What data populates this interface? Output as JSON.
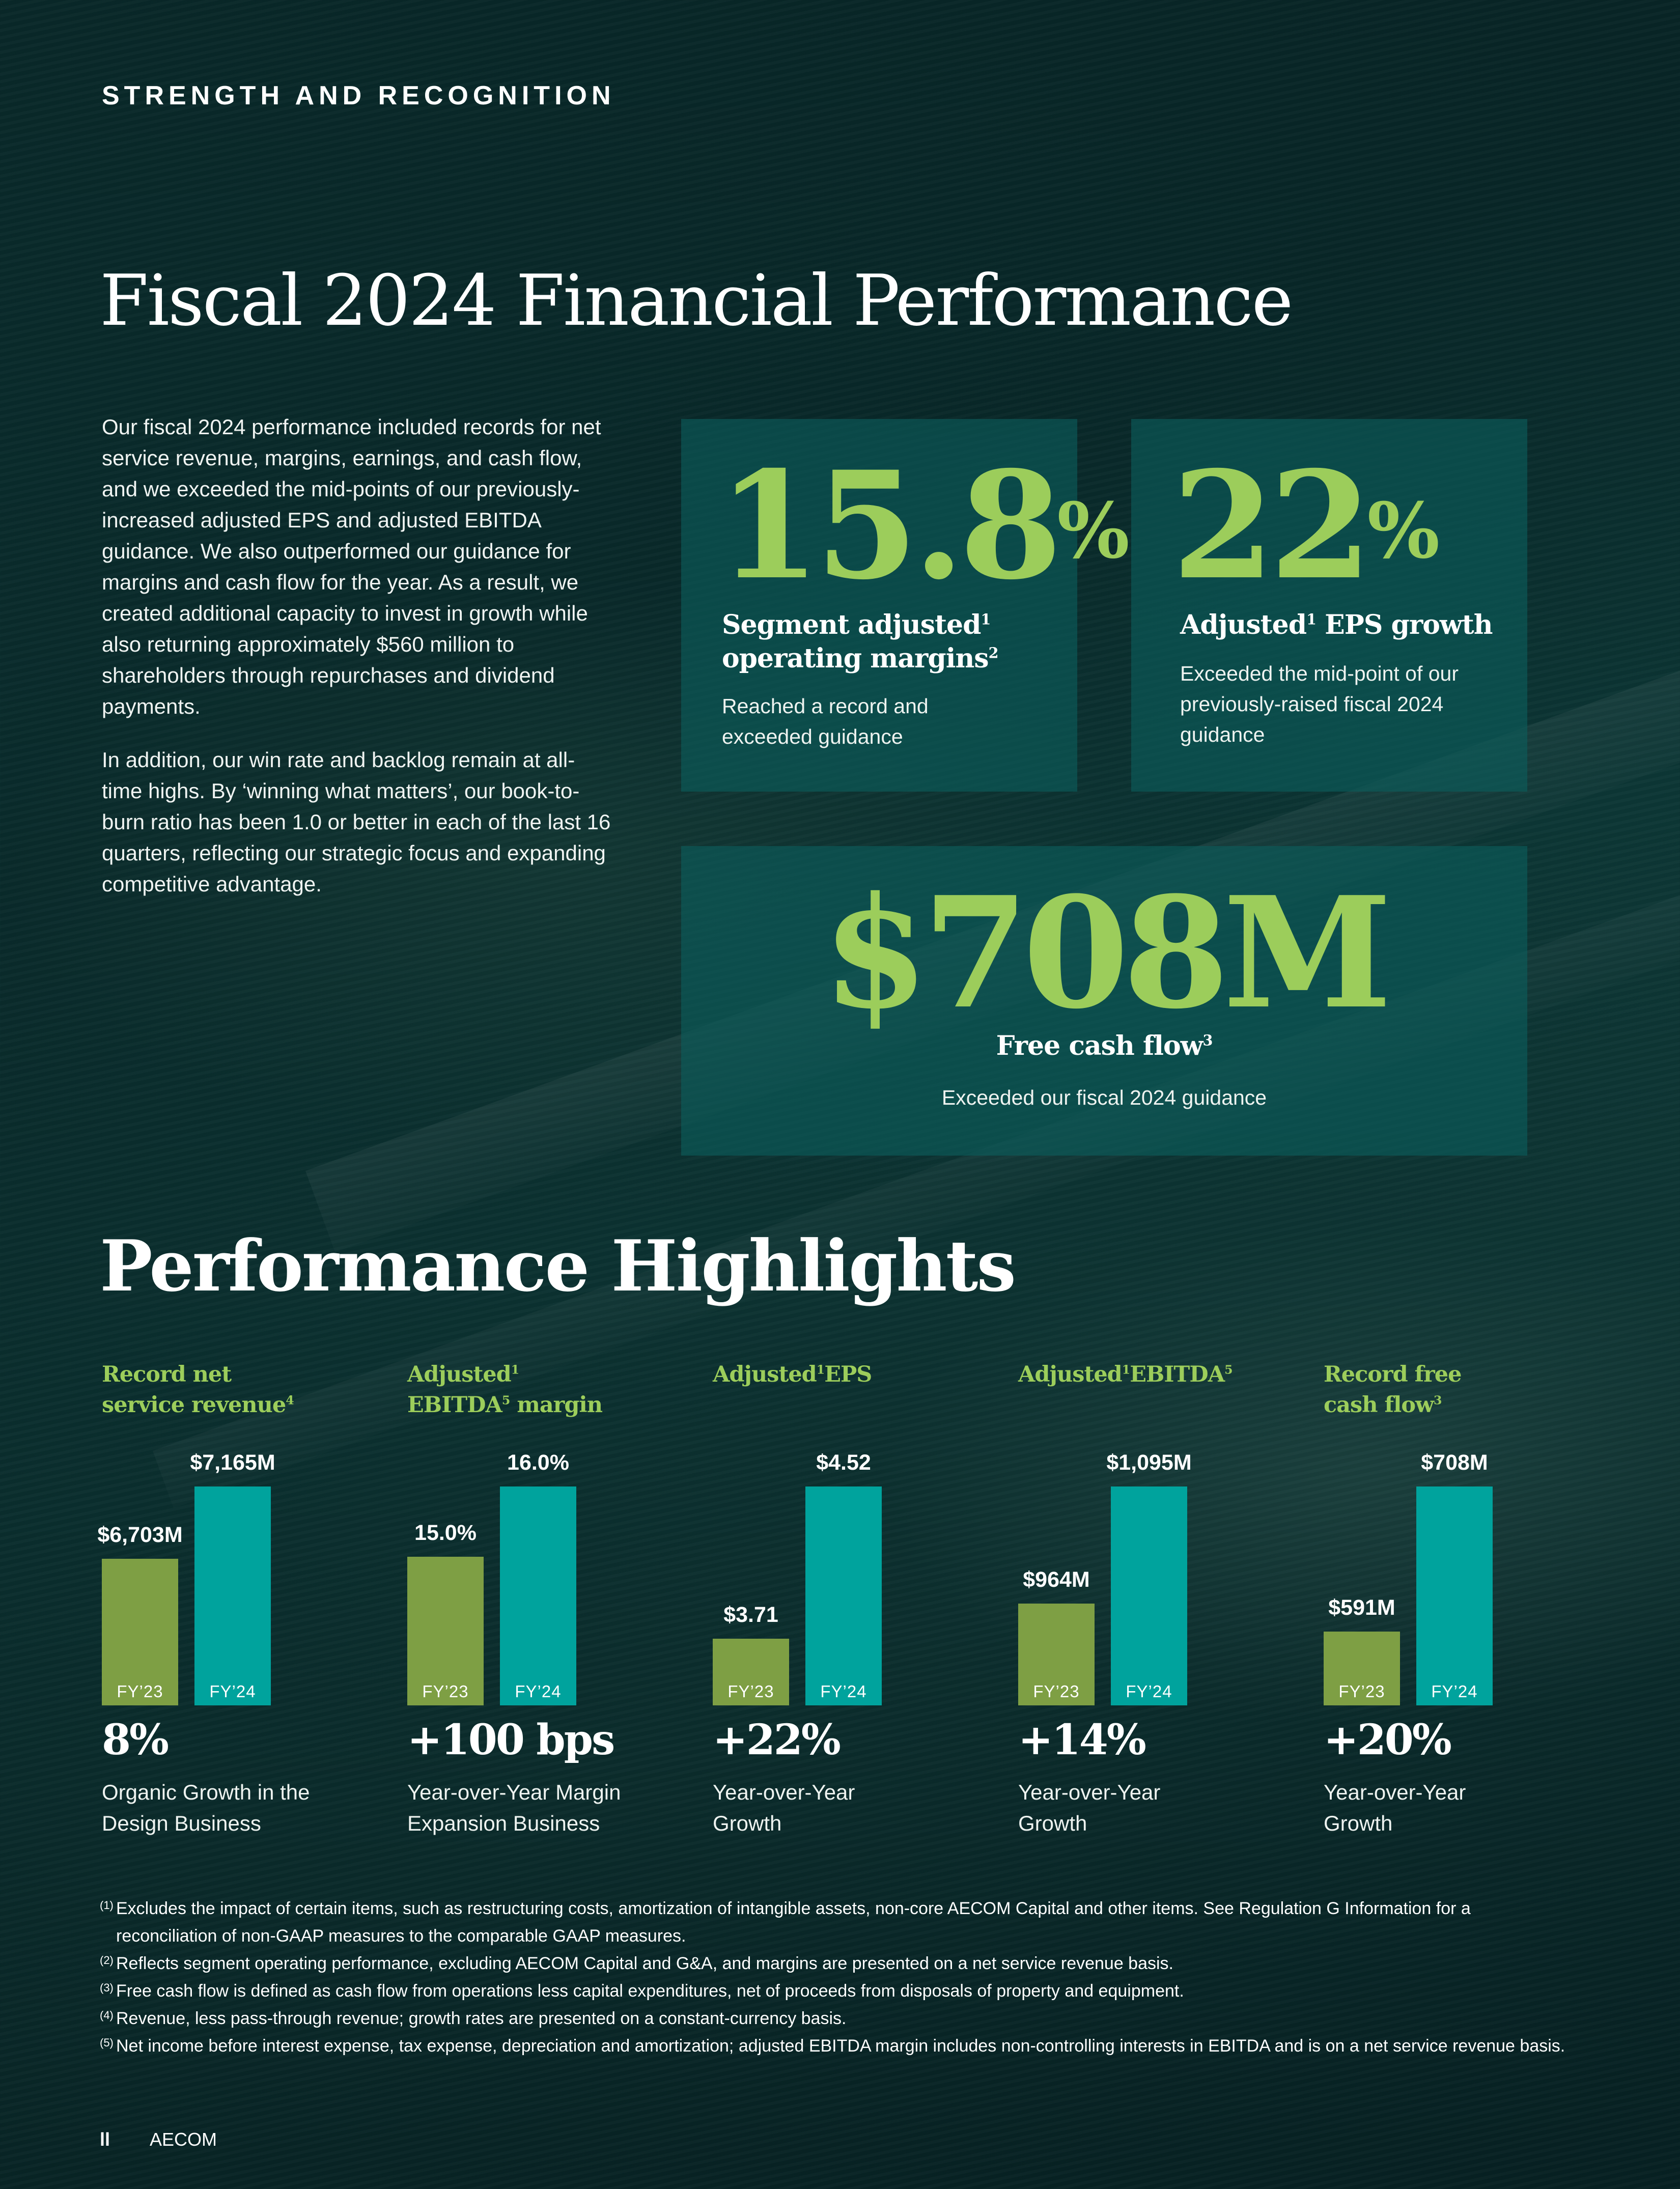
{
  "header": {
    "eyebrow": "STRENGTH AND RECOGNITION",
    "title": "Fiscal 2024 Financial Performance"
  },
  "intro": {
    "p1": "Our fiscal 2024 performance included records for net service revenue, margins, earnings, and cash flow, and we exceeded the mid-points of our previously-increased adjusted EPS and adjusted EBITDA guidance. We also outperformed our guidance for margins and cash flow for the year. As a result, we created additional capacity to invest in growth while also returning approximately $560 million to shareholders through repurchases and dividend payments.",
    "p2": "In addition, our win rate and backlog remain at all-time highs. By ‘winning what matters’, our book-to-burn ratio has been 1.0 or better in each of the last 16 quarters, reflecting our strategic focus and expanding competitive advantage."
  },
  "cards": {
    "margin": {
      "value": "15.8",
      "unit": "%",
      "title_a": "Segment adjusted",
      "sup_a": "1",
      "title_b": "operating margins",
      "sup_b": "2",
      "desc": "Reached a record and exceeded guidance"
    },
    "eps": {
      "value": "22",
      "unit": "%",
      "title_a": "Adjusted",
      "sup_a": "1",
      "title_b": " EPS growth",
      "desc": "Exceeded the mid-point of our previously-raised fiscal 2024 guidance"
    },
    "fcf": {
      "value": "$708M",
      "title": "Free cash flow",
      "sup": "3",
      "desc": "Exceeded our fiscal 2024 guidance"
    }
  },
  "highlights": {
    "title": "Performance Highlights",
    "metrics": [
      {
        "title_line1": "Record net",
        "title_line2": "service revenue",
        "title_sup": "4",
        "fy23_label": "FY’23",
        "fy24_label": "FY’24",
        "fy23_value": "$6,703M",
        "fy24_value": "$7,165M",
        "growth": "8%",
        "growth_desc": "Organic Growth in the Design Business"
      },
      {
        "title_line1": "Adjusted",
        "title_line1_sup": "1",
        "title_line2": "EBITDA",
        "title_line2_sup": "5",
        "title_line2_rest": " margin",
        "fy23_label": "FY’23",
        "fy24_label": "FY’24",
        "fy23_value": "15.0%",
        "fy24_value": "16.0%",
        "growth": "+100 bps",
        "growth_desc": "Year-over-Year Margin Expansion Business"
      },
      {
        "title_line1": "Adjusted",
        "title_line1_sup": "1",
        "title_line1_rest": "EPS",
        "fy23_label": "FY’23",
        "fy24_label": "FY’24",
        "fy23_value": "$3.71",
        "fy24_value": "$4.52",
        "growth": "+22%",
        "growth_desc": "Year-over-Year Growth"
      },
      {
        "title_line1": "Adjusted",
        "title_line1_sup": "1",
        "title_line1_rest": "EBITDA",
        "title_line1_sup2": "5",
        "fy23_label": "FY’23",
        "fy24_label": "FY’24",
        "fy23_value": "$964M",
        "fy24_value": "$1,095M",
        "growth": "+14%",
        "growth_desc": "Year-over-Year Growth"
      },
      {
        "title_line1": "Record free",
        "title_line2": "cash flow",
        "title_sup": "3",
        "fy23_label": "FY’23",
        "fy24_label": "FY’24",
        "fy23_value": "$591M",
        "fy24_value": "$708M",
        "growth": "+20%",
        "growth_desc": "Year-over-Year Growth"
      }
    ]
  },
  "chart_data": [
    {
      "type": "bar",
      "title": "Record net service revenue",
      "categories": [
        "FY'23",
        "FY'24"
      ],
      "values": [
        6703,
        7165
      ],
      "unit": "$M"
    },
    {
      "type": "bar",
      "title": "Adjusted EBITDA margin",
      "categories": [
        "FY'23",
        "FY'24"
      ],
      "values": [
        15.0,
        16.0
      ],
      "unit": "%"
    },
    {
      "type": "bar",
      "title": "Adjusted EPS",
      "categories": [
        "FY'23",
        "FY'24"
      ],
      "values": [
        3.71,
        4.52
      ],
      "unit": "$"
    },
    {
      "type": "bar",
      "title": "Adjusted EBITDA",
      "categories": [
        "FY'23",
        "FY'24"
      ],
      "values": [
        964,
        1095
      ],
      "unit": "$M"
    },
    {
      "type": "bar",
      "title": "Record free cash flow",
      "categories": [
        "FY'23",
        "FY'24"
      ],
      "values": [
        591,
        708
      ],
      "unit": "$M"
    }
  ],
  "footnotes": [
    {
      "num": "(1)",
      "text": "Excludes the impact of certain items, such as restructuring costs, amortization of intangible assets, non-core AECOM Capital and other items. See Regulation G Information for a reconciliation of non-GAAP measures to the comparable GAAP measures."
    },
    {
      "num": "(2)",
      "text": "Reflects segment operating performance, excluding AECOM Capital and G&A, and margins are presented on a net service revenue basis."
    },
    {
      "num": "(3)",
      "text": "Free cash flow is defined as cash flow from operations less capital expenditures, net of proceeds from disposals of property and equipment."
    },
    {
      "num": "(4)",
      "text": "Revenue, less pass-through revenue; growth rates are presented on a constant-currency basis."
    },
    {
      "num": "(5)",
      "text": "Net income before interest expense, tax expense, depreciation and amortization; adjusted EBITDA margin includes non-controlling interests in EBITDA and is on a net service revenue basis."
    }
  ],
  "footer": {
    "page": "ll",
    "brand": "AECOM"
  },
  "colors": {
    "accent_green": "#9ccd5b",
    "bar_fy23": "#7e9f44",
    "bar_fy24": "#00a39d"
  }
}
